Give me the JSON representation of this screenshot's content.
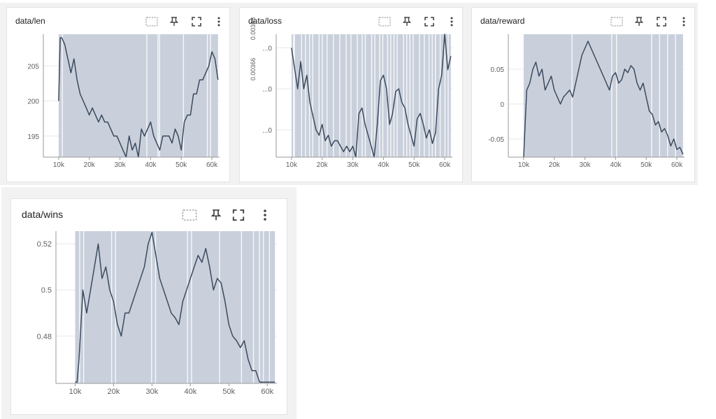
{
  "panel_icons": [
    "data-selection-icon",
    "pin-icon",
    "fullscreen-icon",
    "more-vert-icon"
  ],
  "colors": {
    "line": "#3b4a5e",
    "band": "#c9d0db",
    "axis": "#999999",
    "grid": "#e8e8e8",
    "card_bg": "#f2f2f2"
  },
  "panels": [
    {
      "title": "data/len"
    },
    {
      "title": "data/loss"
    },
    {
      "title": "data/reward"
    },
    {
      "title": "data/wins"
    }
  ],
  "chart_data": [
    {
      "type": "line",
      "title": "data/len",
      "xlabel": "",
      "ylabel": "",
      "xlim": [
        5000,
        62500
      ],
      "ylim": [
        192,
        209.5
      ],
      "x_ticks": [
        10000,
        20000,
        30000,
        40000,
        50000,
        60000
      ],
      "x_tick_labels": [
        "10k",
        "20k",
        "30k",
        "40k",
        "50k",
        "60k"
      ],
      "y_ticks": [
        195,
        200,
        205
      ],
      "y_tick_labels": [
        "195",
        "200",
        "205"
      ],
      "band_x": [
        10000,
        62000
      ],
      "series": [
        {
          "x": [
            10000,
            10500,
            11000,
            12000,
            13000,
            14000,
            15000,
            16000,
            17000,
            18000,
            19000,
            20000,
            21000,
            22000,
            23000,
            24000,
            25000,
            26000,
            27000,
            28000,
            29000,
            30000,
            31000,
            32000,
            33000,
            34000,
            35000,
            36000,
            37000,
            38000,
            39000,
            40000,
            41000,
            42000,
            43000,
            44000,
            45000,
            46000,
            47000,
            48000,
            49000,
            50000,
            51000,
            52000,
            53000,
            54000,
            55000,
            56000,
            57000,
            58000,
            59000,
            60000,
            61000,
            62000
          ],
          "y": [
            200,
            209,
            209,
            208,
            206,
            204,
            206,
            203,
            201,
            200,
            199,
            198,
            199,
            198,
            197,
            198,
            197,
            197,
            196,
            195,
            195,
            194,
            193,
            192,
            195,
            193,
            194,
            192,
            196,
            195,
            196,
            197,
            195,
            194,
            193,
            195,
            195,
            195,
            194,
            196,
            195,
            193,
            197,
            198,
            198,
            201,
            201,
            203,
            203,
            204,
            205,
            207,
            206,
            203
          ]
        }
      ]
    },
    {
      "type": "line",
      "title": "data/loss",
      "xlabel": "",
      "ylabel": "",
      "xlim": [
        5000,
        62500
      ],
      "ylim": [
        0.0036,
        0.00405
      ],
      "x_ticks": [
        10000,
        20000,
        30000,
        40000,
        50000,
        60000
      ],
      "x_tick_labels": [
        "10k",
        "20k",
        "30k",
        "40k",
        "50k",
        "60k"
      ],
      "y_ticks": [
        0.0037,
        0.00385,
        0.004
      ],
      "y_tick_labels": [
        "...0",
        "...0",
        "...0"
      ],
      "y_rotated_labels": [
        "0.00366",
        "0.00368"
      ],
      "band_x": [
        10000,
        62000
      ],
      "series": [
        {
          "x": [
            10000,
            12000,
            13000,
            14000,
            15000,
            16000,
            17000,
            18000,
            19000,
            20000,
            21000,
            22000,
            23000,
            24000,
            25000,
            26000,
            27000,
            28000,
            29000,
            30000,
            31000,
            32000,
            33000,
            34000,
            35000,
            36000,
            37000,
            38000,
            39000,
            40000,
            41000,
            42000,
            43000,
            44000,
            45000,
            46000,
            47000,
            48000,
            49000,
            50000,
            51000,
            52000,
            53000,
            54000,
            55000,
            56000,
            57000,
            58000,
            59000,
            60000,
            61000,
            62000
          ],
          "y": [
            0.004,
            0.00385,
            0.00395,
            0.00385,
            0.0039,
            0.0038,
            0.00375,
            0.0037,
            0.00368,
            0.00372,
            0.00366,
            0.00368,
            0.00364,
            0.00366,
            0.00366,
            0.00364,
            0.00362,
            0.00364,
            0.00362,
            0.00364,
            0.0036,
            0.00376,
            0.00378,
            0.00372,
            0.00368,
            0.00364,
            0.0036,
            0.00372,
            0.00388,
            0.0039,
            0.00385,
            0.00372,
            0.00376,
            0.00384,
            0.00385,
            0.0038,
            0.00378,
            0.00372,
            0.00368,
            0.00364,
            0.00374,
            0.00376,
            0.00372,
            0.00367,
            0.0037,
            0.00365,
            0.00369,
            0.00385,
            0.0039,
            0.00405,
            0.00392,
            0.00397
          ]
        }
      ]
    },
    {
      "type": "line",
      "title": "data/reward",
      "xlabel": "",
      "ylabel": "",
      "xlim": [
        5000,
        62500
      ],
      "ylim": [
        -0.076,
        0.1
      ],
      "x_ticks": [
        10000,
        20000,
        30000,
        40000,
        50000,
        60000
      ],
      "x_tick_labels": [
        "10k",
        "20k",
        "30k",
        "40k",
        "50k",
        "60k"
      ],
      "y_ticks": [
        -0.05,
        0,
        0.05
      ],
      "y_tick_labels": [
        "-0.05",
        "0",
        "0.05"
      ],
      "band_x": [
        10000,
        62000
      ],
      "series": [
        {
          "x": [
            10000,
            11000,
            12000,
            13000,
            14000,
            15000,
            16000,
            17000,
            18000,
            19000,
            20000,
            21000,
            22000,
            23000,
            24000,
            25000,
            26000,
            27000,
            28000,
            29000,
            30000,
            31000,
            32000,
            33000,
            34000,
            35000,
            36000,
            37000,
            38000,
            39000,
            40000,
            41000,
            42000,
            43000,
            44000,
            45000,
            46000,
            47000,
            48000,
            49000,
            50000,
            51000,
            52000,
            53000,
            54000,
            55000,
            56000,
            57000,
            58000,
            59000,
            60000,
            61000,
            62000
          ],
          "y": [
            -0.076,
            0.02,
            0.03,
            0.05,
            0.06,
            0.04,
            0.05,
            0.02,
            0.03,
            0.04,
            0.02,
            0.01,
            0.0,
            0.01,
            0.015,
            0.02,
            0.01,
            0.03,
            0.05,
            0.07,
            0.08,
            0.09,
            0.08,
            0.07,
            0.06,
            0.05,
            0.04,
            0.03,
            0.02,
            0.04,
            0.045,
            0.03,
            0.035,
            0.05,
            0.045,
            0.055,
            0.05,
            0.03,
            0.02,
            0.03,
            0.01,
            -0.01,
            -0.015,
            -0.03,
            -0.025,
            -0.04,
            -0.035,
            -0.045,
            -0.06,
            -0.05,
            -0.065,
            -0.062,
            -0.072
          ]
        }
      ]
    },
    {
      "type": "line",
      "title": "data/wins",
      "xlabel": "",
      "ylabel": "",
      "xlim": [
        5000,
        62500
      ],
      "ylim": [
        0.4595,
        0.5255
      ],
      "x_ticks": [
        10000,
        20000,
        30000,
        40000,
        50000,
        60000
      ],
      "x_tick_labels": [
        "10k",
        "20k",
        "30k",
        "40k",
        "50k",
        "60k"
      ],
      "y_ticks": [
        0.48,
        0.5,
        0.52
      ],
      "y_tick_labels": [
        "0.48",
        "0.5",
        "0.52"
      ],
      "band_x": [
        10000,
        62000
      ],
      "series": [
        {
          "x": [
            10000,
            10500,
            11000,
            12000,
            13000,
            14000,
            15000,
            16000,
            17000,
            18000,
            19000,
            20000,
            21000,
            22000,
            23000,
            24000,
            25000,
            26000,
            27000,
            28000,
            29000,
            30000,
            31000,
            32000,
            33000,
            34000,
            35000,
            36000,
            37000,
            38000,
            39000,
            40000,
            41000,
            42000,
            43000,
            44000,
            45000,
            46000,
            47000,
            48000,
            49000,
            50000,
            51000,
            52000,
            53000,
            54000,
            55000,
            56000,
            57000,
            58000,
            59000,
            60000,
            61000,
            62000
          ],
          "y": [
            0.46,
            0.46,
            0.47,
            0.5,
            0.49,
            0.5,
            0.51,
            0.52,
            0.505,
            0.51,
            0.5,
            0.495,
            0.485,
            0.48,
            0.49,
            0.49,
            0.495,
            0.5,
            0.505,
            0.51,
            0.52,
            0.525,
            0.515,
            0.505,
            0.5,
            0.495,
            0.49,
            0.488,
            0.485,
            0.495,
            0.5,
            0.505,
            0.51,
            0.515,
            0.512,
            0.518,
            0.51,
            0.5,
            0.505,
            0.503,
            0.495,
            0.485,
            0.48,
            0.478,
            0.475,
            0.478,
            0.47,
            0.465,
            0.465,
            0.46,
            0.46,
            0.46,
            0.46,
            0.46
          ]
        }
      ]
    }
  ]
}
